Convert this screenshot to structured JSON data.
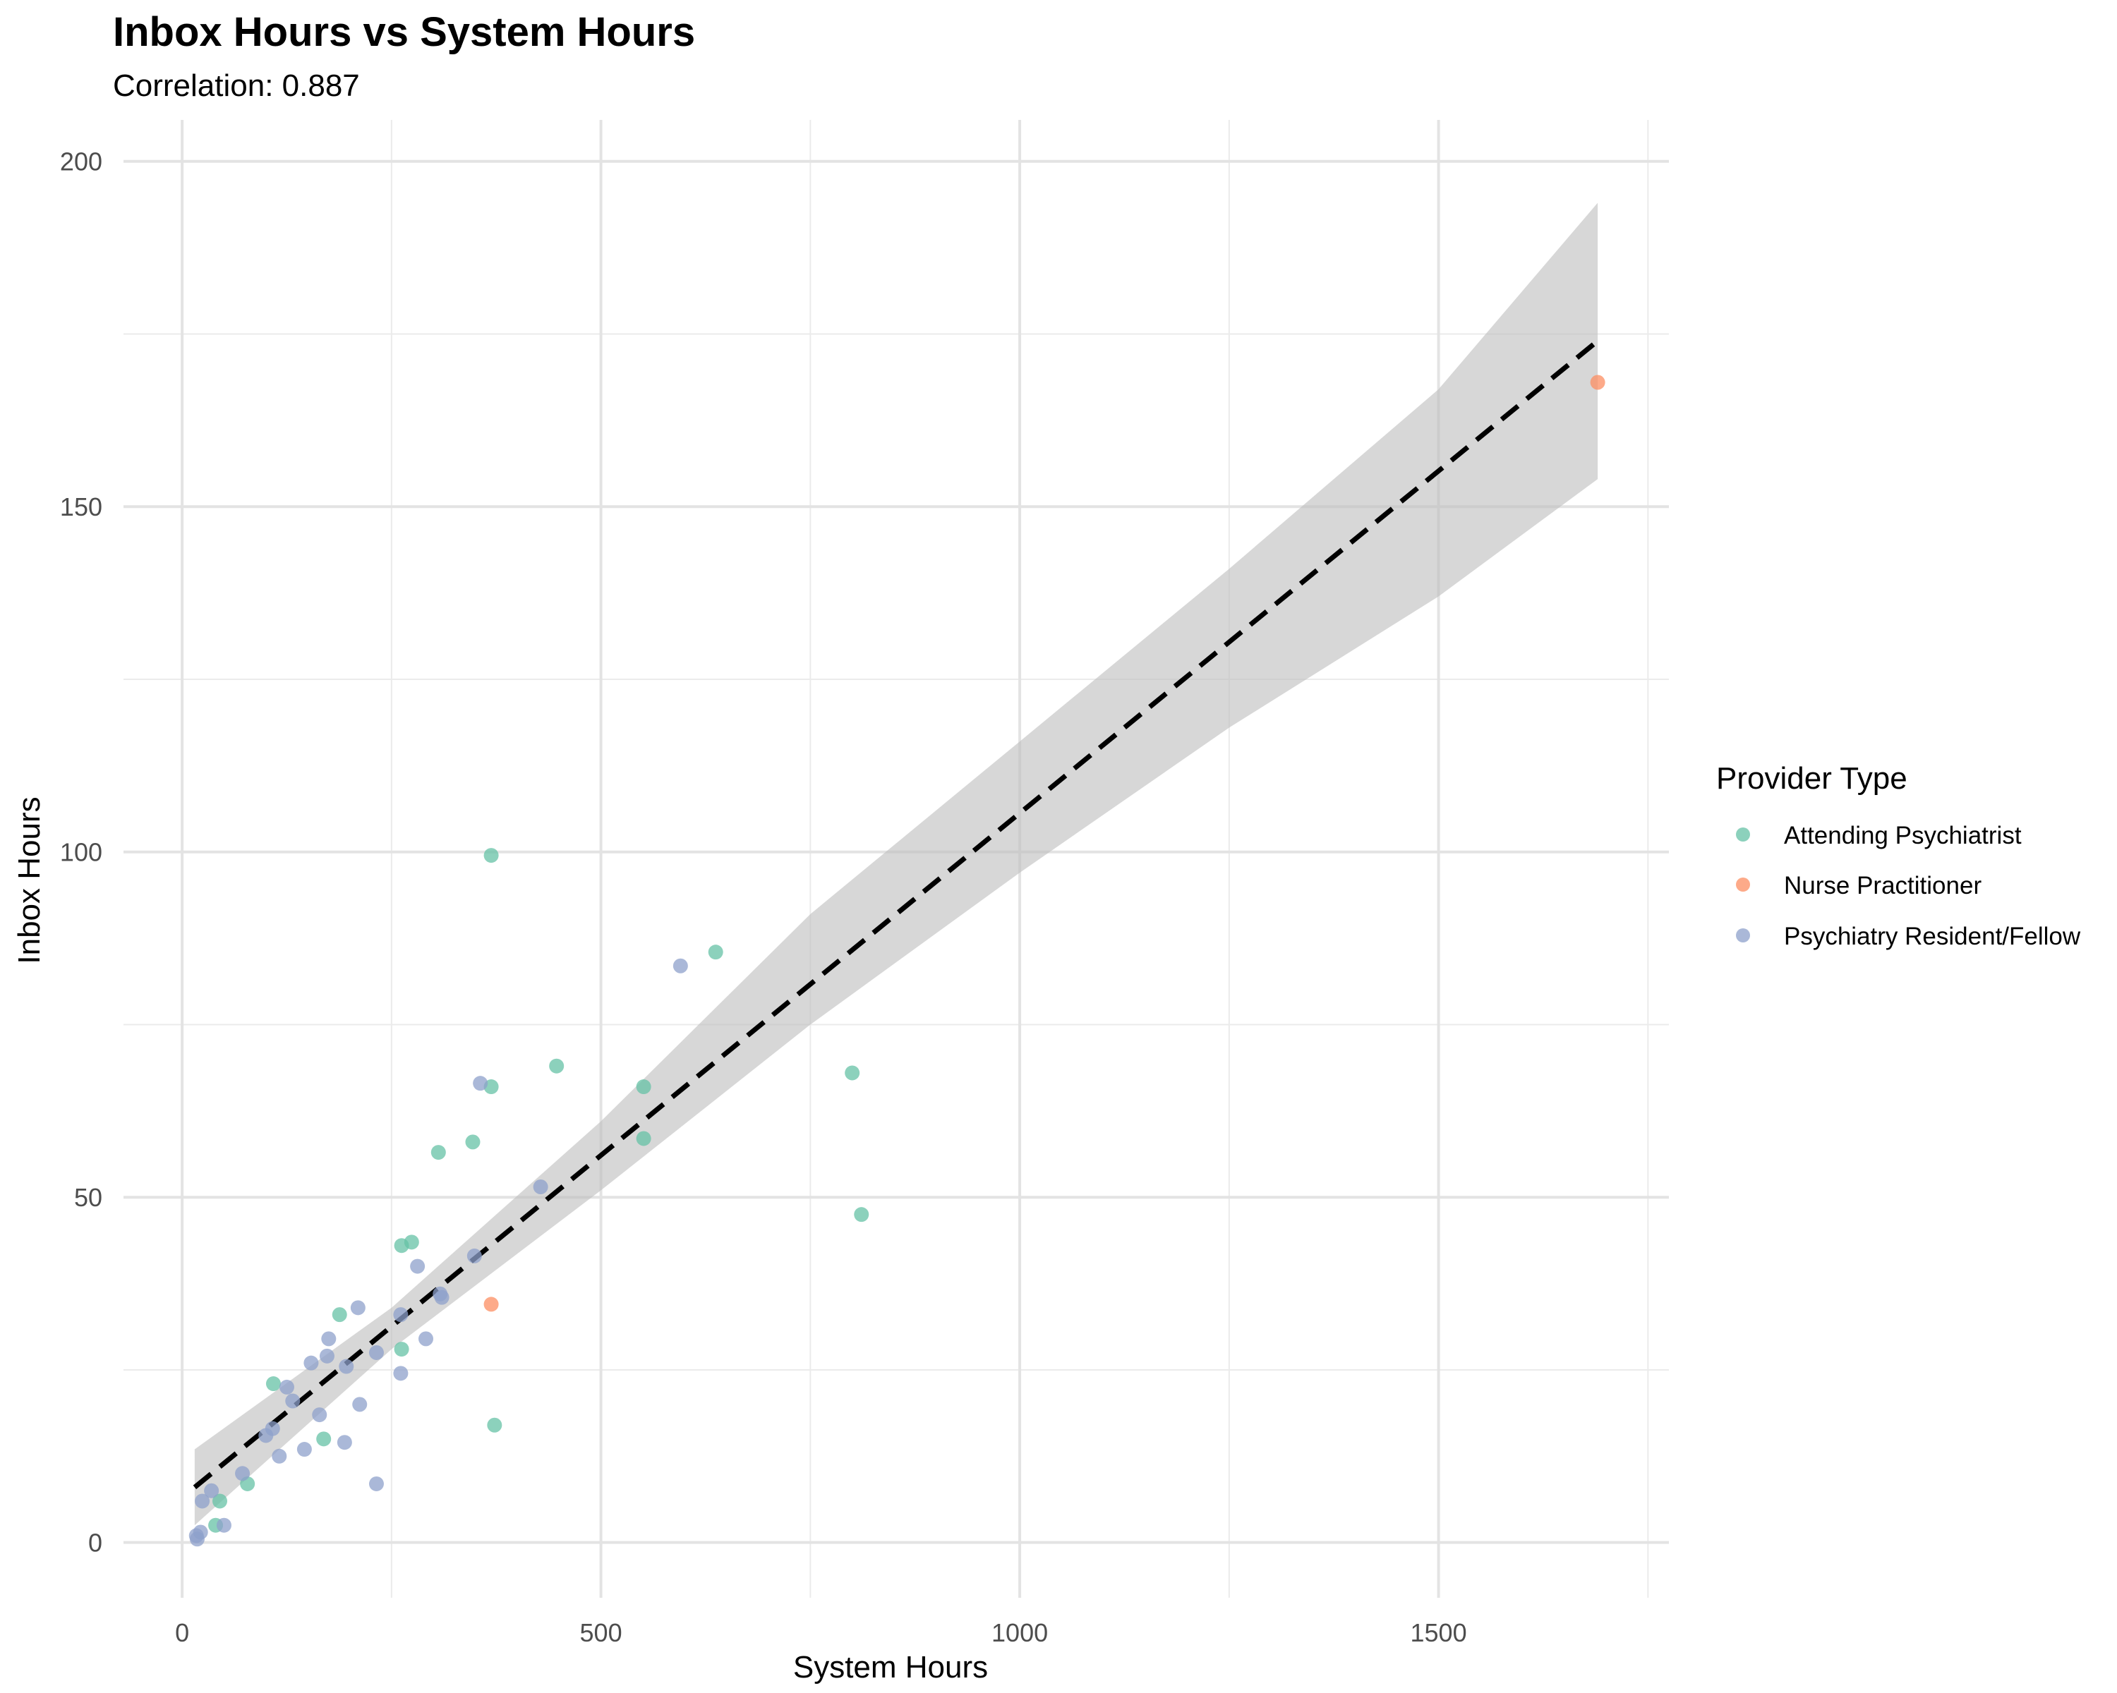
{
  "chart_data": {
    "type": "scatter",
    "title": "Inbox Hours vs System Hours",
    "subtitle": "Correlation: 0.887",
    "xlabel": "System Hours",
    "ylabel": "Inbox Hours",
    "xlim": [
      -70,
      1775
    ],
    "ylim": [
      -8,
      206
    ],
    "x_ticks": [
      0,
      500,
      1000,
      1500
    ],
    "x_tick_labels": [
      "0",
      "500",
      "1000",
      "1500"
    ],
    "y_ticks": [
      0,
      50,
      100,
      150,
      200
    ],
    "y_tick_labels": [
      "0",
      "50",
      "100",
      "150",
      "200"
    ],
    "grid": true,
    "legend": {
      "title": "Provider Type",
      "placement": "right",
      "entries": [
        "Attending Psychiatrist",
        "Nurse Practitioner",
        "Psychiatry Resident/Fellow"
      ]
    },
    "colors": {
      "Attending Psychiatrist": "#66c2a5",
      "Nurse Practitioner": "#fc8d62",
      "Psychiatry Resident/Fellow": "#8da0cb",
      "trend_line": "#000000",
      "confidence_band": "#bfbfbf"
    },
    "trend_line": {
      "style": "dashed",
      "x": [
        15,
        1690
      ],
      "y": [
        8.0,
        174.0
      ]
    },
    "confidence_band": {
      "x": [
        15,
        250,
        500,
        750,
        1000,
        1250,
        1500,
        1690
      ],
      "lower": [
        2.5,
        28,
        51,
        75,
        97,
        118,
        137,
        154
      ],
      "upper": [
        13.5,
        34,
        61,
        91,
        116,
        141,
        167,
        194
      ]
    },
    "series": [
      {
        "name": "Attending Psychiatrist",
        "points": [
          [
            369,
            99.5
          ],
          [
            637,
            85.5
          ],
          [
            447,
            69
          ],
          [
            800,
            68
          ],
          [
            369,
            66
          ],
          [
            551,
            66
          ],
          [
            551,
            58.5
          ],
          [
            347,
            58
          ],
          [
            306,
            56.5
          ],
          [
            811,
            47.5
          ],
          [
            274,
            43.5
          ],
          [
            262,
            43
          ],
          [
            188,
            33
          ],
          [
            262,
            28
          ],
          [
            109,
            23
          ],
          [
            373,
            17
          ],
          [
            169,
            15
          ],
          [
            78,
            8.5
          ],
          [
            45,
            6
          ],
          [
            40,
            2.5
          ]
        ]
      },
      {
        "name": "Nurse Practitioner",
        "points": [
          [
            1690,
            168
          ],
          [
            369,
            34.5
          ]
        ]
      },
      {
        "name": "Psychiatry Resident/Fellow",
        "points": [
          [
            595,
            83.5
          ],
          [
            356,
            66.5
          ],
          [
            428,
            51.5
          ],
          [
            349,
            41.5
          ],
          [
            281,
            40
          ],
          [
            308,
            36
          ],
          [
            310,
            35.5
          ],
          [
            210,
            34
          ],
          [
            261,
            33
          ],
          [
            291,
            29.5
          ],
          [
            175,
            29.5
          ],
          [
            232,
            27.5
          ],
          [
            173,
            27
          ],
          [
            154,
            26
          ],
          [
            196,
            25.5
          ],
          [
            261,
            24.5
          ],
          [
            125,
            22.5
          ],
          [
            132,
            20.5
          ],
          [
            212,
            20
          ],
          [
            164,
            18.5
          ],
          [
            108,
            16.5
          ],
          [
            100,
            15.5
          ],
          [
            194,
            14.5
          ],
          [
            146,
            13.5
          ],
          [
            116,
            12.5
          ],
          [
            72,
            10
          ],
          [
            35,
            7.5
          ],
          [
            24,
            6
          ],
          [
            232,
            8.5
          ],
          [
            50,
            2.5
          ],
          [
            22,
            1.5
          ],
          [
            17,
            1
          ],
          [
            18,
            0.5
          ]
        ]
      }
    ]
  }
}
